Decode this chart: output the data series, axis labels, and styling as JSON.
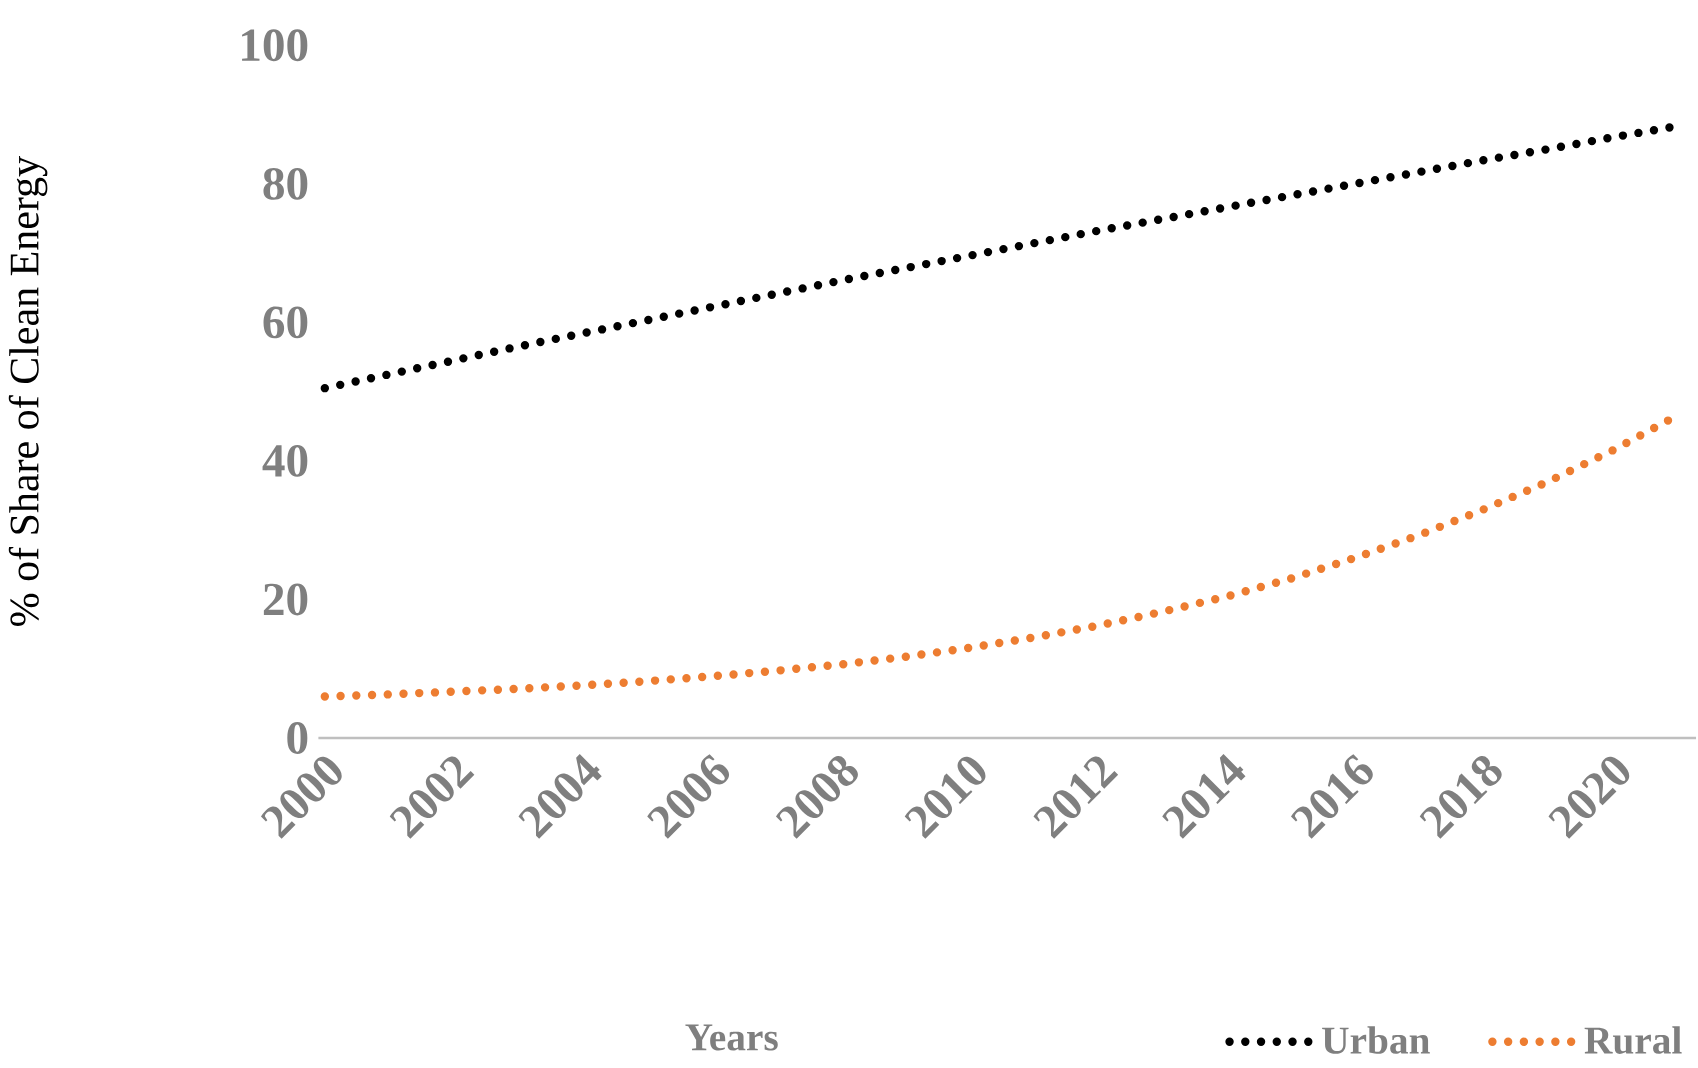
{
  "chart_data": {
    "type": "line",
    "xlabel": "Years",
    "ylabel": "% of Share of Clean Energy",
    "categories": [
      "2000",
      null,
      "2002",
      null,
      "2004",
      null,
      "2006",
      null,
      "2008",
      null,
      "2010",
      null,
      "2012",
      null,
      "2014",
      null,
      "2016",
      null,
      "2018",
      null,
      "2020",
      null
    ],
    "series": [
      {
        "name": "Urban",
        "color": "#000000",
        "values": [
          50.5,
          52.5,
          54.5,
          56.5,
          58.4,
          60.3,
          62.2,
          64.1,
          66.0,
          67.8,
          69.6,
          71.4,
          73.2,
          74.9,
          76.6,
          78.3,
          80.0,
          81.7,
          83.4,
          85.0,
          86.7,
          88.3
        ]
      },
      {
        "name": "Rural",
        "color": "#ed7d31",
        "values": [
          6.0,
          6.3,
          6.7,
          7.1,
          7.6,
          8.2,
          8.9,
          9.7,
          10.6,
          11.7,
          13.0,
          14.5,
          16.2,
          18.2,
          20.4,
          23.0,
          26.0,
          29.3,
          33.0,
          37.0,
          41.5,
          46.5
        ]
      }
    ],
    "ylim": [
      0,
      100
    ],
    "yticks": [
      0,
      20,
      40,
      60,
      80,
      100
    ],
    "legend": "bottom",
    "marker": "none",
    "line_style": "dotted"
  }
}
